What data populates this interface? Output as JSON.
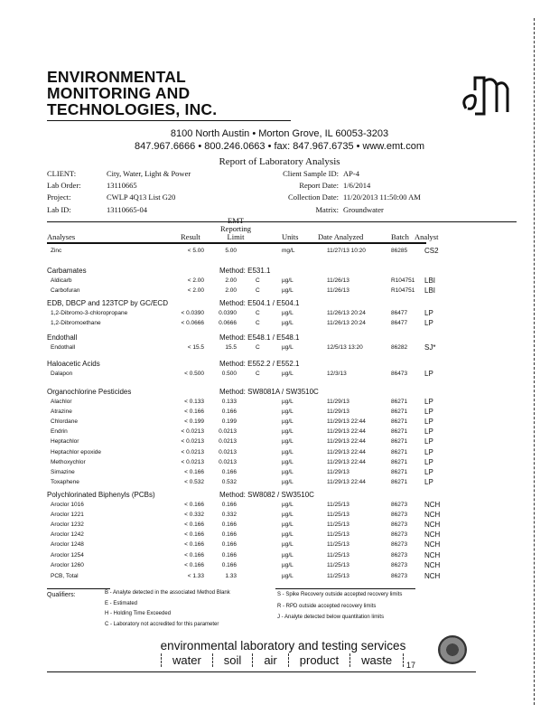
{
  "company": {
    "name_lines": [
      "ENVIRONMENTAL",
      "MONITORING AND",
      "TECHNOLOGIES, INC."
    ],
    "logo_text": "emt",
    "address": "8100 North Austin • Morton Grove, IL 60053-3203",
    "contact": "847.967.6666 • 800.246.0663 • fax: 847.967.6735 • www.emt.com"
  },
  "report_title": "Report of Laboratory Analysis",
  "info_left": [
    {
      "label": "CLIENT:",
      "value": "City, Water, Light & Power"
    },
    {
      "label": "Lab Order:",
      "value": "13110665"
    },
    {
      "label": "Project:",
      "value": "CWLP 4Q13 List G20"
    },
    {
      "label": "Lab ID:",
      "value": "13110665-04"
    }
  ],
  "info_right": [
    {
      "label": "Client Sample ID:",
      "value": "AP-4"
    },
    {
      "label": "Report Date:",
      "value": "1/6/2014"
    },
    {
      "label": "Collection Date:",
      "value": "11/20/2013 11:50:00 AM"
    },
    {
      "label": "Matrix:",
      "value": "Groundwater"
    }
  ],
  "columns": {
    "analyses": "Analyses",
    "result": "Result",
    "limit": "EMT Reporting Limit",
    "units": "Units",
    "date": "Date Analyzed",
    "batch": "Batch",
    "analyst": "Analyst"
  },
  "sections": [
    {
      "title": "",
      "method": "",
      "rows": [
        [
          "Zinc",
          "< 5.00",
          "5.00",
          "",
          "mg/L",
          "11/27/13 10:20",
          "86285",
          "CS2"
        ]
      ]
    },
    {
      "title": "Carbamates",
      "method": "Method:  E531.1",
      "rows": [
        [
          "Aldicarb",
          "< 2.00",
          "2.00",
          "C",
          "µg/L",
          "11/26/13",
          "R104751",
          "LBI"
        ],
        [
          "Carbofuran",
          "< 2.00",
          "2.00",
          "C",
          "µg/L",
          "11/26/13",
          "R104751",
          "LBI"
        ]
      ]
    },
    {
      "title": "EDB, DBCP and 123TCP by GC/ECD",
      "method": "Method:  E504.1 / E504.1",
      "rows": [
        [
          "1,2-Dibromo-3-chloropropane",
          "< 0.0390",
          "0.0390",
          "C",
          "µg/L",
          "11/26/13 20:24",
          "86477",
          "LP"
        ],
        [
          "1,2-Dibromoethane",
          "< 0.0666",
          "0.0666",
          "C",
          "µg/L",
          "11/26/13 20:24",
          "86477",
          "LP"
        ]
      ]
    },
    {
      "title": "Endothall",
      "method": "Method:  E548.1 / E548.1",
      "rows": [
        [
          "Endothall",
          "< 15.5",
          "15.5",
          "C",
          "µg/L",
          "12/5/13 13:20",
          "86282",
          "SJ*"
        ]
      ]
    },
    {
      "title": "Haloacetic Acids",
      "method": "Method:  E552.2 / E552.1",
      "rows": [
        [
          "Dalapon",
          "< 0.500",
          "0.500",
          "C",
          "µg/L",
          "12/3/13",
          "86473",
          "LP"
        ]
      ]
    },
    {
      "title": "Organochlorine Pesticides",
      "method": "Method:  SW8081A / SW3510C",
      "rows": [
        [
          "Alachlor",
          "< 0.133",
          "0.133",
          "",
          "µg/L",
          "11/29/13",
          "86271",
          "LP"
        ],
        [
          "Atrazine",
          "< 0.166",
          "0.166",
          "",
          "µg/L",
          "11/29/13",
          "86271",
          "LP"
        ],
        [
          "Chlordane",
          "< 0.199",
          "0.199",
          "",
          "µg/L",
          "11/29/13 22:44",
          "86271",
          "LP"
        ],
        [
          "Endrin",
          "< 0.0213",
          "0.0213",
          "",
          "µg/L",
          "11/29/13 22:44",
          "86271",
          "LP"
        ],
        [
          "Heptachlor",
          "< 0.0213",
          "0.0213",
          "",
          "µg/L",
          "11/29/13 22:44",
          "86271",
          "LP"
        ],
        [
          "Heptachlor epoxide",
          "< 0.0213",
          "0.0213",
          "",
          "µg/L",
          "11/29/13 22:44",
          "86271",
          "LP"
        ],
        [
          "Methoxychlor",
          "< 0.0213",
          "0.0213",
          "",
          "µg/L",
          "11/29/13 22:44",
          "86271",
          "LP"
        ],
        [
          "Simazine",
          "< 0.166",
          "0.166",
          "",
          "µg/L",
          "11/29/13",
          "86271",
          "LP"
        ],
        [
          "Toxaphene",
          "< 0.532",
          "0.532",
          "",
          "µg/L",
          "11/29/13 22:44",
          "86271",
          "LP"
        ]
      ]
    },
    {
      "title": "Polychlorinated Biphenyls (PCBs)",
      "method": "Method:  SW8082 / SW3510C",
      "rows": [
        [
          "Aroclor 1016",
          "< 0.166",
          "0.166",
          "",
          "µg/L",
          "11/25/13",
          "86273",
          "NCH"
        ],
        [
          "Aroclor 1221",
          "< 0.332",
          "0.332",
          "",
          "µg/L",
          "11/25/13",
          "86273",
          "NCH"
        ],
        [
          "Aroclor 1232",
          "< 0.166",
          "0.166",
          "",
          "µg/L",
          "11/25/13",
          "86273",
          "NCH"
        ],
        [
          "Aroclor 1242",
          "< 0.166",
          "0.166",
          "",
          "µg/L",
          "11/25/13",
          "86273",
          "NCH"
        ],
        [
          "Aroclor 1248",
          "< 0.166",
          "0.166",
          "",
          "µg/L",
          "11/25/13",
          "86273",
          "NCH"
        ],
        [
          "Aroclor 1254",
          "< 0.166",
          "0.166",
          "",
          "µg/L",
          "11/25/13",
          "86273",
          "NCH"
        ],
        [
          "Aroclor 1260",
          "< 0.166",
          "0.166",
          "",
          "µg/L",
          "11/25/13",
          "86273",
          "NCH"
        ],
        [
          "PCB, Total",
          "< 1.33",
          "1.33",
          "",
          "µg/L",
          "11/25/13",
          "86273",
          "NCH"
        ]
      ]
    }
  ],
  "qualifiers": {
    "label": "Qualifiers:",
    "left": [
      "B - Analyte detected in the associated Method Blank",
      "E - Estimated",
      "H - Holding Time Exceeded",
      "C - Laboratory not accredited for this parameter"
    ],
    "right": [
      "S - Spike Recovery outside accepted recovery limits",
      "R - RPD outside accepted recovery limits",
      "J - Analyte detected below quantitation limits"
    ]
  },
  "footer": {
    "tagline": "environmental laboratory and testing services",
    "services": [
      "water",
      "soil",
      "air",
      "product",
      "waste"
    ],
    "page_number": "17"
  }
}
